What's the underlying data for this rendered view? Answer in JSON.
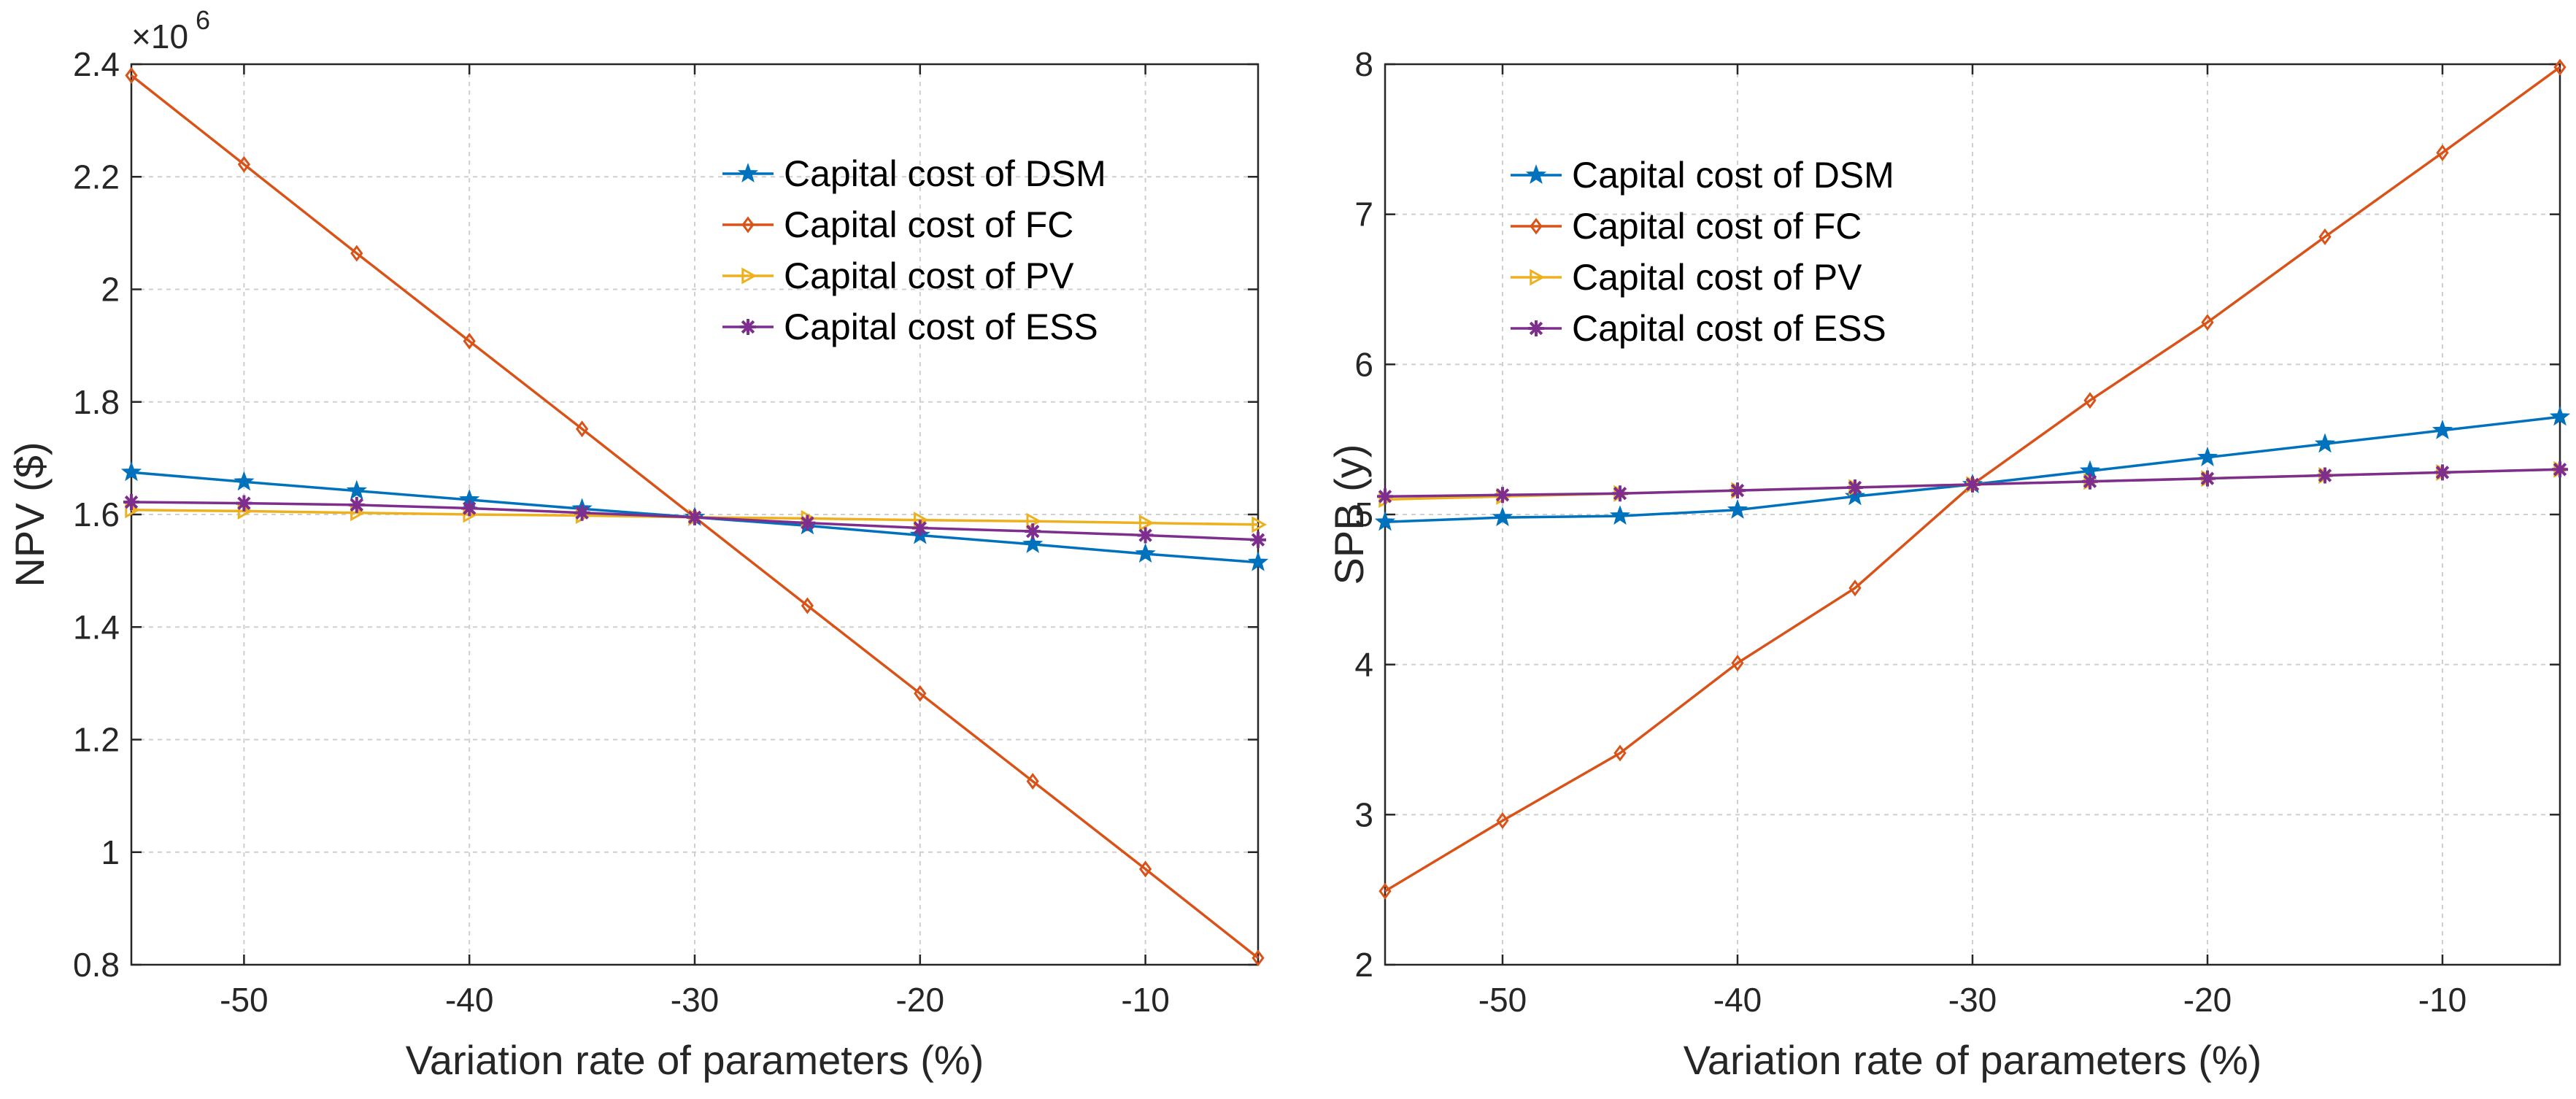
{
  "chart_data": [
    {
      "type": "line",
      "id": "npv",
      "xlabel": "Variation rate of parameters (%)",
      "ylabel": "NPV ($)",
      "exponent_label": "×10",
      "exponent_power": "6",
      "xlim": [
        -55,
        -5
      ],
      "ylim": [
        0.8,
        2.4
      ],
      "xticks": [
        -50,
        -40,
        -30,
        -20,
        -10
      ],
      "xtick_labels": [
        "-50",
        "-40",
        "-30",
        "-20",
        "-10"
      ],
      "yticks": [
        0.8,
        1,
        1.2,
        1.4,
        1.6,
        1.8,
        2,
        2.2,
        2.4
      ],
      "ytick_labels": [
        "0.8",
        "1",
        "1.2",
        "1.4",
        "1.6",
        "1.8",
        "2",
        "2.2",
        "2.4"
      ],
      "grid": true,
      "legend_position": "top-right",
      "x": [
        -55,
        -50,
        -45,
        -40,
        -35,
        -30,
        -25,
        -20,
        -15,
        -10,
        -5
      ],
      "series": [
        {
          "name": "Capital cost of DSM",
          "color": "#0072BD",
          "marker": "star",
          "values": [
            1.675,
            1.658,
            1.642,
            1.626,
            1.61,
            1.595,
            1.58,
            1.563,
            1.547,
            1.53,
            1.515
          ]
        },
        {
          "name": "Capital cost of FC",
          "color": "#D95319",
          "marker": "diamond",
          "values": [
            2.38,
            2.222,
            2.064,
            1.908,
            1.752,
            1.595,
            1.438,
            1.282,
            1.126,
            0.97,
            0.812
          ]
        },
        {
          "name": "Capital cost of PV",
          "color": "#EDB120",
          "marker": "triangle-right",
          "values": [
            1.608,
            1.606,
            1.603,
            1.6,
            1.598,
            1.595,
            1.593,
            1.59,
            1.588,
            1.585,
            1.582
          ]
        },
        {
          "name": "Capital cost of ESS",
          "color": "#7E2F8E",
          "marker": "asterisk",
          "values": [
            1.622,
            1.62,
            1.617,
            1.611,
            1.603,
            1.595,
            1.585,
            1.576,
            1.57,
            1.563,
            1.555
          ]
        }
      ]
    },
    {
      "type": "line",
      "id": "spb",
      "xlabel": "Variation rate of parameters (%)",
      "ylabel": "SPB (y)",
      "xlim": [
        -55,
        -5
      ],
      "ylim": [
        2,
        8
      ],
      "xticks": [
        -50,
        -40,
        -30,
        -20,
        -10
      ],
      "xtick_labels": [
        "-50",
        "-40",
        "-30",
        "-20",
        "-10"
      ],
      "yticks": [
        2,
        3,
        4,
        5,
        6,
        7,
        8
      ],
      "ytick_labels": [
        "2",
        "3",
        "4",
        "5",
        "6",
        "7",
        "8"
      ],
      "grid": true,
      "legend_position": "top-left",
      "x": [
        -55,
        -50,
        -45,
        -40,
        -35,
        -30,
        -25,
        -20,
        -15,
        -10,
        -5
      ],
      "series": [
        {
          "name": "Capital cost of DSM",
          "color": "#0072BD",
          "marker": "star",
          "values": [
            4.95,
            4.98,
            4.99,
            5.03,
            5.12,
            5.2,
            5.29,
            5.38,
            5.47,
            5.56,
            5.65
          ]
        },
        {
          "name": "Capital cost of FC",
          "color": "#D95319",
          "marker": "diamond",
          "values": [
            2.49,
            2.96,
            3.41,
            4.01,
            4.51,
            5.2,
            5.76,
            6.28,
            6.85,
            7.41,
            7.98
          ]
        },
        {
          "name": "Capital cost of PV",
          "color": "#EDB120",
          "marker": "triangle-right",
          "values": [
            5.1,
            5.12,
            5.14,
            5.16,
            5.18,
            5.2,
            5.22,
            5.24,
            5.26,
            5.28,
            5.3
          ]
        },
        {
          "name": "Capital cost of ESS",
          "color": "#7E2F8E",
          "marker": "asterisk",
          "values": [
            5.12,
            5.13,
            5.14,
            5.16,
            5.18,
            5.2,
            5.22,
            5.24,
            5.26,
            5.28,
            5.3
          ]
        }
      ]
    }
  ]
}
